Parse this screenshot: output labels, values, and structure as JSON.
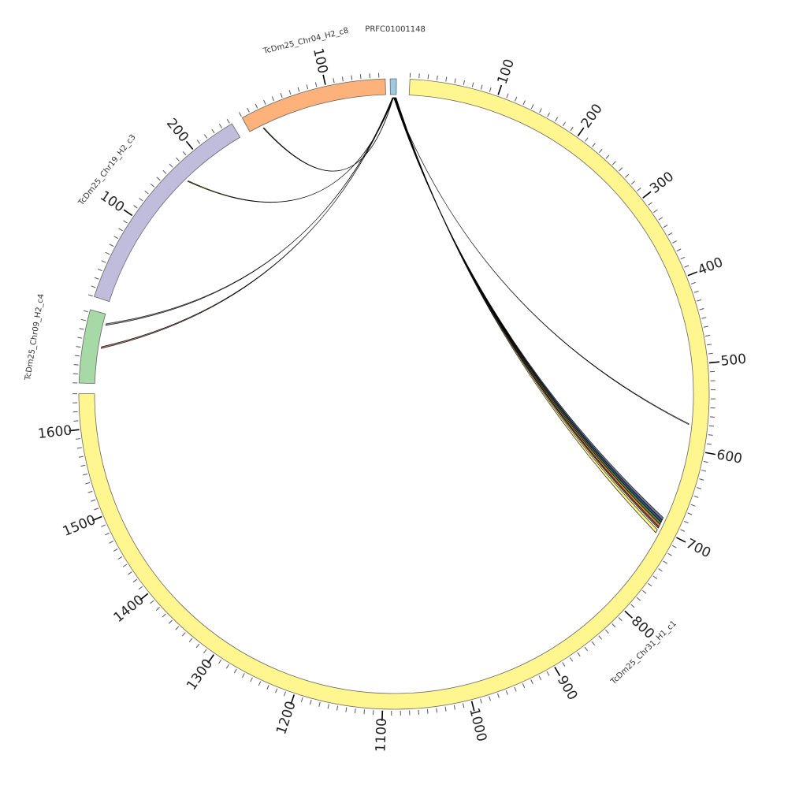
{
  "chromosomes": [
    {
      "id": "chr31",
      "name": "TcDm25_Chr31_H1_c1",
      "length": 1640,
      "color": "#fff68f",
      "tick_labels": [
        "100",
        "200",
        "300",
        "400",
        "500",
        "600",
        "700",
        "800",
        "900",
        "1000",
        "1100",
        "1200",
        "1300",
        "1400",
        "1500",
        "1600"
      ]
    },
    {
      "id": "chr09",
      "name": "TcDm25_Chr09_H2_c4",
      "length": 83,
      "color": "#a6d9a6",
      "tick_labels": []
    },
    {
      "id": "chr19",
      "name": "TcDm25_Chr19_H2_c3",
      "length": 252,
      "color": "#bfbcdc",
      "tick_labels": [
        "100",
        "200"
      ]
    },
    {
      "id": "chr04",
      "name": "TcDm25_Chr04_H2_c8",
      "length": 167,
      "color": "#fdb27b",
      "tick_labels": [
        "100"
      ]
    },
    {
      "id": "prfc",
      "name": "PRFC01001148",
      "length": 7,
      "color": "#9ecae1",
      "tick_labels": []
    }
  ],
  "links": [
    {
      "source": "prfc",
      "source_range": [
        3.2,
        3.5
      ],
      "target": "chr04",
      "target_range": [
        16,
        17
      ],
      "color": "#2e6b2e"
    },
    {
      "source": "prfc",
      "source_range": [
        3.5,
        3.8
      ],
      "target": "chr19",
      "target_range": [
        171,
        172
      ],
      "color": "#c8b400"
    },
    {
      "source": "prfc",
      "source_range": [
        2.4,
        2.9
      ],
      "target": "chr09",
      "target_range": [
        70,
        72
      ],
      "color": "#888888"
    },
    {
      "source": "prfc",
      "source_range": [
        2.9,
        3.2
      ],
      "target": "chr09",
      "target_range": [
        42,
        44
      ],
      "color": "#a0705a"
    },
    {
      "source": "prfc",
      "source_range": [
        3.8,
        3.9
      ],
      "target": "chr31",
      "target_range": [
        570,
        571
      ],
      "color": "#ffffff"
    },
    {
      "source": "prfc",
      "source_range": [
        3.9,
        4.6
      ],
      "target": "chr31",
      "target_range": [
        686,
        689
      ],
      "color": "#5a6f8f"
    },
    {
      "source": "prfc",
      "source_range": [
        4.6,
        5.2
      ],
      "target": "chr31",
      "target_range": [
        689,
        692
      ],
      "color": "#2f3f6f"
    },
    {
      "source": "prfc",
      "source_range": [
        5.2,
        5.7
      ],
      "target": "chr31",
      "target_range": [
        692,
        695
      ],
      "color": "#3c7a3c"
    },
    {
      "source": "prfc",
      "source_range": [
        5.7,
        6.1
      ],
      "target": "chr31",
      "target_range": [
        695,
        698
      ],
      "color": "#e07820"
    },
    {
      "source": "prfc",
      "source_range": [
        6.1,
        6.4
      ],
      "target": "chr31",
      "target_range": [
        698,
        700
      ],
      "color": "#8b5a2b"
    },
    {
      "source": "prfc",
      "source_range": [
        6.4,
        6.9
      ],
      "target": "chr31",
      "target_range": [
        702,
        706
      ],
      "color": "#fff27a"
    }
  ]
}
